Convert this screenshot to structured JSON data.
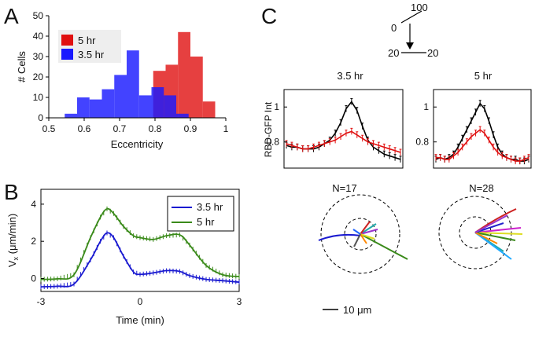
{
  "chart_data": [
    {
      "panel": "A",
      "type": "bar",
      "xlabel": "Eccentricity",
      "ylabel": "# Cells",
      "xlim": [
        0.5,
        1
      ],
      "ylim": [
        0,
        50
      ],
      "xticks": [
        "0.5",
        "0.6",
        "0.7",
        "0.8",
        "0.9",
        "1"
      ],
      "yticks": [
        "0",
        "10",
        "20",
        "30",
        "40",
        "50"
      ],
      "bin_width": 0.035,
      "legend": [
        "5 hr",
        "3.5 hr"
      ],
      "series": [
        {
          "name": "3.5 hr",
          "color": "#1a1aff",
          "bin_starts": [
            0.545,
            0.58,
            0.615,
            0.65,
            0.685,
            0.72,
            0.755,
            0.79,
            0.825,
            0.86,
            0.895
          ],
          "values": [
            2,
            10,
            9,
            14,
            21,
            33,
            11,
            15,
            11,
            2,
            0
          ]
        },
        {
          "name": "5 hr",
          "color": "#e01010",
          "bin_starts": [
            0.795,
            0.83,
            0.865,
            0.9,
            0.935
          ],
          "values": [
            23,
            26,
            42,
            30,
            8
          ]
        }
      ]
    },
    {
      "panel": "B",
      "type": "line",
      "xlabel": "Time (min)",
      "ylabel_main": "V",
      "ylabel_sub": "x",
      "ylabel_unit": " (μm/min)",
      "xlim": [
        -3,
        3
      ],
      "ylim": [
        -0.7,
        4.8
      ],
      "xticks": [
        "-3",
        "0",
        "3"
      ],
      "yticks": [
        "0",
        "2",
        "4"
      ],
      "legend": [
        "3.5 hr",
        "5 hr"
      ],
      "series": [
        {
          "name": "3.5 hr",
          "color": "#1a1ad0",
          "x": [
            -3,
            -2.5,
            -2,
            -1.5,
            -1.2,
            -1,
            -0.8,
            -0.5,
            -0.2,
            0,
            0.4,
            0.8,
            1.2,
            1.5,
            2,
            2.5,
            3
          ],
          "y": [
            -0.45,
            -0.42,
            -0.3,
            1.0,
            2.0,
            2.45,
            2.2,
            1.2,
            0.35,
            0.22,
            0.3,
            0.42,
            0.38,
            0.15,
            -0.05,
            -0.12,
            -0.2
          ]
        },
        {
          "name": "5 hr",
          "color": "#3a8a1a",
          "x": [
            -3,
            -2.5,
            -2,
            -1.5,
            -1.2,
            -1,
            -0.8,
            -0.5,
            -0.2,
            0,
            0.4,
            0.8,
            1.2,
            1.5,
            2,
            2.5,
            3
          ],
          "y": [
            -0.05,
            -0.02,
            0.2,
            2.2,
            3.3,
            3.75,
            3.5,
            2.8,
            2.3,
            2.2,
            2.1,
            2.3,
            2.35,
            1.8,
            0.7,
            0.2,
            0.1
          ]
        }
      ]
    },
    {
      "panel": "C",
      "type": "line",
      "ylabel": "RBD-GFP Int",
      "ylim": [
        0.65,
        1.1
      ],
      "yticks": [
        "0.8",
        "1"
      ],
      "subplots": [
        {
          "title": "3.5 hr",
          "n_label": "N=17",
          "series": [
            {
              "name": "black",
              "color": "#000000",
              "y": [
                0.78,
                0.77,
                0.77,
                0.76,
                0.76,
                0.76,
                0.77,
                0.79,
                0.81,
                0.85,
                0.91,
                0.99,
                1.03,
                0.98,
                0.89,
                0.81,
                0.77,
                0.75,
                0.73,
                0.72,
                0.71,
                0.7
              ]
            },
            {
              "name": "red",
              "color": "#e01010",
              "y": [
                0.79,
                0.78,
                0.77,
                0.76,
                0.76,
                0.77,
                0.78,
                0.79,
                0.8,
                0.81,
                0.83,
                0.85,
                0.86,
                0.84,
                0.82,
                0.8,
                0.79,
                0.78,
                0.77,
                0.76,
                0.75,
                0.74
              ]
            }
          ]
        },
        {
          "title": "5 hr",
          "n_label": "N=28",
          "series": [
            {
              "name": "black",
              "color": "#000000",
              "y": [
                0.7,
                0.71,
                0.7,
                0.71,
                0.73,
                0.77,
                0.82,
                0.87,
                0.92,
                0.97,
                1.02,
                0.99,
                0.92,
                0.84,
                0.77,
                0.73,
                0.71,
                0.7,
                0.7,
                0.69,
                0.69,
                0.7
              ]
            },
            {
              "name": "red",
              "color": "#e01010",
              "y": [
                0.71,
                0.71,
                0.7,
                0.7,
                0.72,
                0.74,
                0.77,
                0.8,
                0.83,
                0.85,
                0.87,
                0.85,
                0.81,
                0.77,
                0.74,
                0.72,
                0.71,
                0.7,
                0.69,
                0.69,
                0.7,
                0.71
              ]
            }
          ]
        }
      ],
      "scale_legend": {
        "top": "100",
        "left": "0",
        "bottom_left": "20",
        "bottom_right": "20"
      },
      "scale_bar": "10 μm"
    }
  ],
  "panel_labels": [
    "A",
    "B",
    "C"
  ]
}
